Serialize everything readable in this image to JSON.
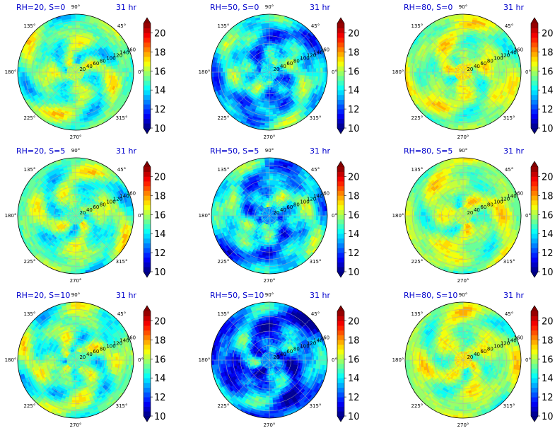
{
  "chart_data": {
    "type": "heatmap",
    "subtype": "polar filled contour",
    "colormap": "jet",
    "colorbar": {
      "levels": [
        10,
        10.5,
        11,
        11.5,
        12,
        12.5,
        13,
        13.5,
        14,
        14.5,
        15,
        15.5,
        16,
        16.5,
        17,
        17.5,
        18,
        18.5,
        19,
        19.5,
        20,
        20.5,
        21
      ],
      "ticks": [
        "10",
        "12",
        "14",
        "16",
        "18",
        "20"
      ],
      "vmin": 10,
      "vmax": 21,
      "extend": "both"
    },
    "angular_ticks": [
      "90°",
      "45°",
      "0°",
      "315°",
      "270°",
      "225°",
      "180°",
      "135°"
    ],
    "radial_ticks": [
      "20",
      "40",
      "60",
      "80",
      "100",
      "120",
      "140",
      "160"
    ],
    "radial_range": [
      0,
      160
    ],
    "grid": true,
    "panels": [
      {
        "title": "RH=20, S=0",
        "time": "31 hr",
        "field_level": "mixed",
        "center_value": 16
      },
      {
        "title": "RH=50, S=0",
        "time": "31 hr",
        "field_level": "lower",
        "center_value": 14
      },
      {
        "title": "RH=80, S=0",
        "time": "31 hr",
        "field_level": "higher",
        "center_value": 17
      },
      {
        "title": "RH=20, S=5",
        "time": "31 hr",
        "field_level": "mixed",
        "center_value": 15
      },
      {
        "title": "RH=50, S=5",
        "time": "31 hr",
        "field_level": "lower",
        "center_value": 13
      },
      {
        "title": "RH=80, S=5",
        "time": "31 hr",
        "field_level": "higher",
        "center_value": 16
      },
      {
        "title": "RH=20, S=10",
        "time": "31 hr",
        "field_level": "mixed",
        "center_value": 15
      },
      {
        "title": "RH=50, S=10",
        "time": "31 hr",
        "field_level": "lowest",
        "center_value": 13
      },
      {
        "title": "RH=80, S=10",
        "time": "31 hr",
        "field_level": "higher",
        "center_value": 17
      }
    ]
  }
}
